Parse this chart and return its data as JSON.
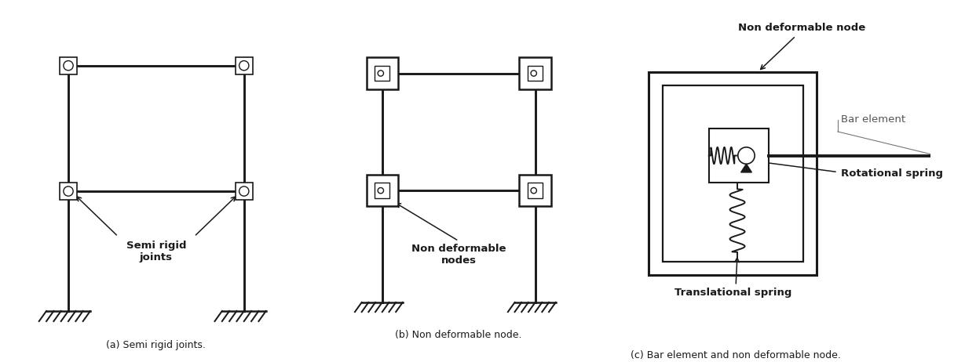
{
  "fig_width": 12.43,
  "fig_height": 4.62,
  "bg_color": "#ffffff",
  "line_color": "#1a1a1a",
  "text_color": "#1a1a1a",
  "caption_a": "(a) Semi rigid joints.",
  "caption_b": "(b) Non deformable node.",
  "caption_c": "(c) Bar element and non deformable node.",
  "label_semi_rigid": "Semi rigid\njoints",
  "label_non_def_nodes": "Non deformable\nnodes",
  "label_non_def_node": "Non deformable node",
  "label_bar_element": "Bar element",
  "label_rot_spring": "Rotational spring",
  "label_trans_spring": "Translational spring"
}
